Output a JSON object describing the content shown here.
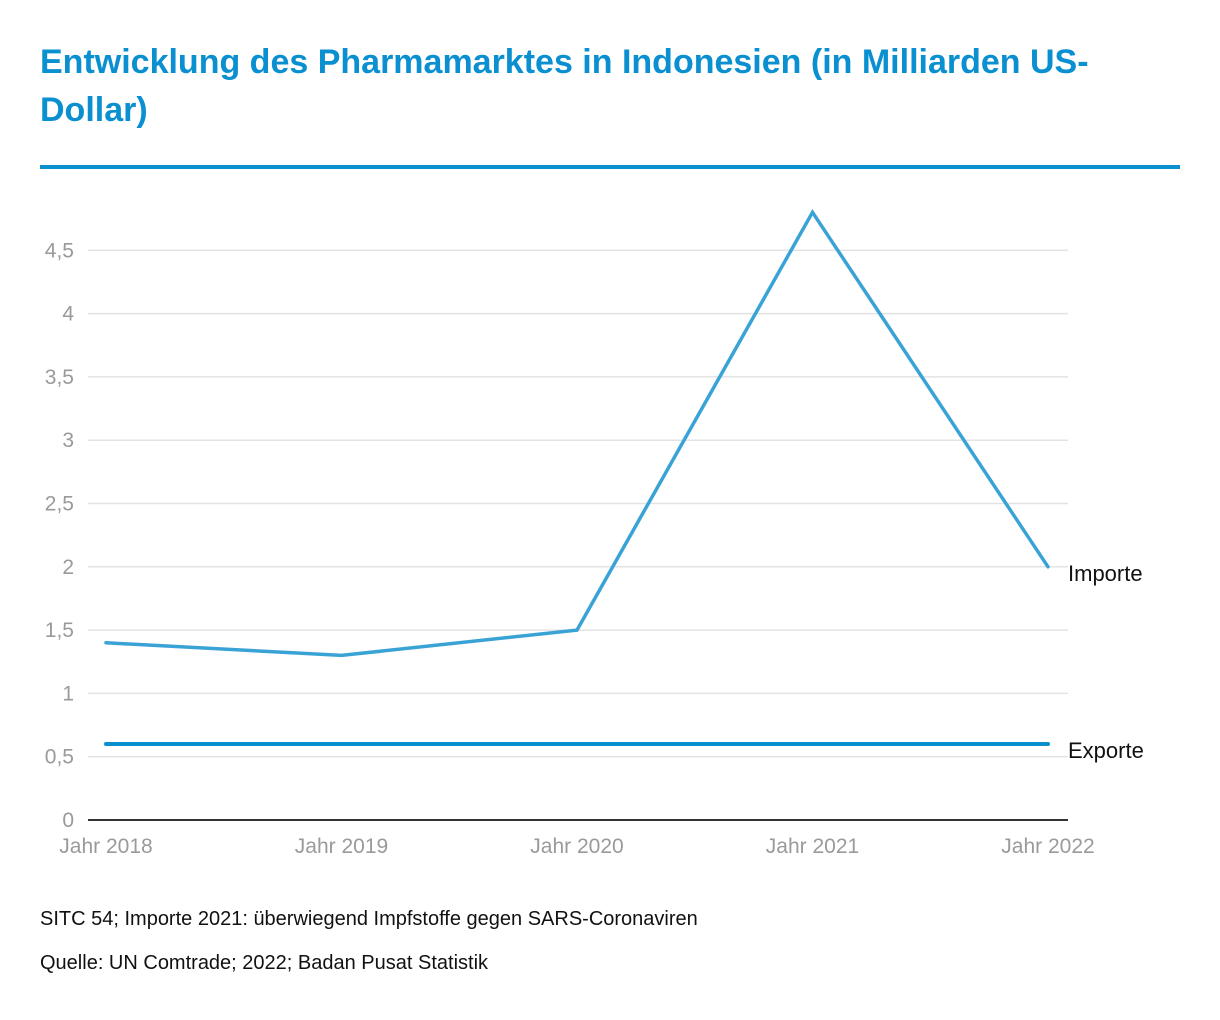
{
  "title": "Entwicklung des Pharmamarktes in Indonesien (in Milliarden US-Dollar)",
  "note": "SITC 54; Importe 2021: überwiegend Impfstoffe gegen SARS-Coronaviren",
  "source": "Quelle: UN Comtrade; 2022; Badan Pusat Statistik",
  "colors": {
    "title": "#0a8fd1",
    "importe": "#3aa3d6",
    "exporte": "#0a8fd1",
    "grid": "#e3e3e3",
    "axis": "#333333"
  },
  "chart_data": {
    "type": "line",
    "categories": [
      "Jahr 2018",
      "Jahr 2019",
      "Jahr 2020",
      "Jahr 2021",
      "Jahr 2022"
    ],
    "series": [
      {
        "name": "Importe",
        "values": [
          1.4,
          1.3,
          1.5,
          4.8,
          2.0
        ]
      },
      {
        "name": "Exporte",
        "values": [
          0.6,
          0.6,
          0.6,
          0.6,
          0.6
        ]
      }
    ],
    "yticks": [
      "0",
      "0,5",
      "1",
      "1,5",
      "2",
      "2,5",
      "3",
      "3,5",
      "4",
      "4,5"
    ],
    "ylim": [
      0,
      5
    ],
    "grid": true,
    "legend": "inline at line ends"
  }
}
